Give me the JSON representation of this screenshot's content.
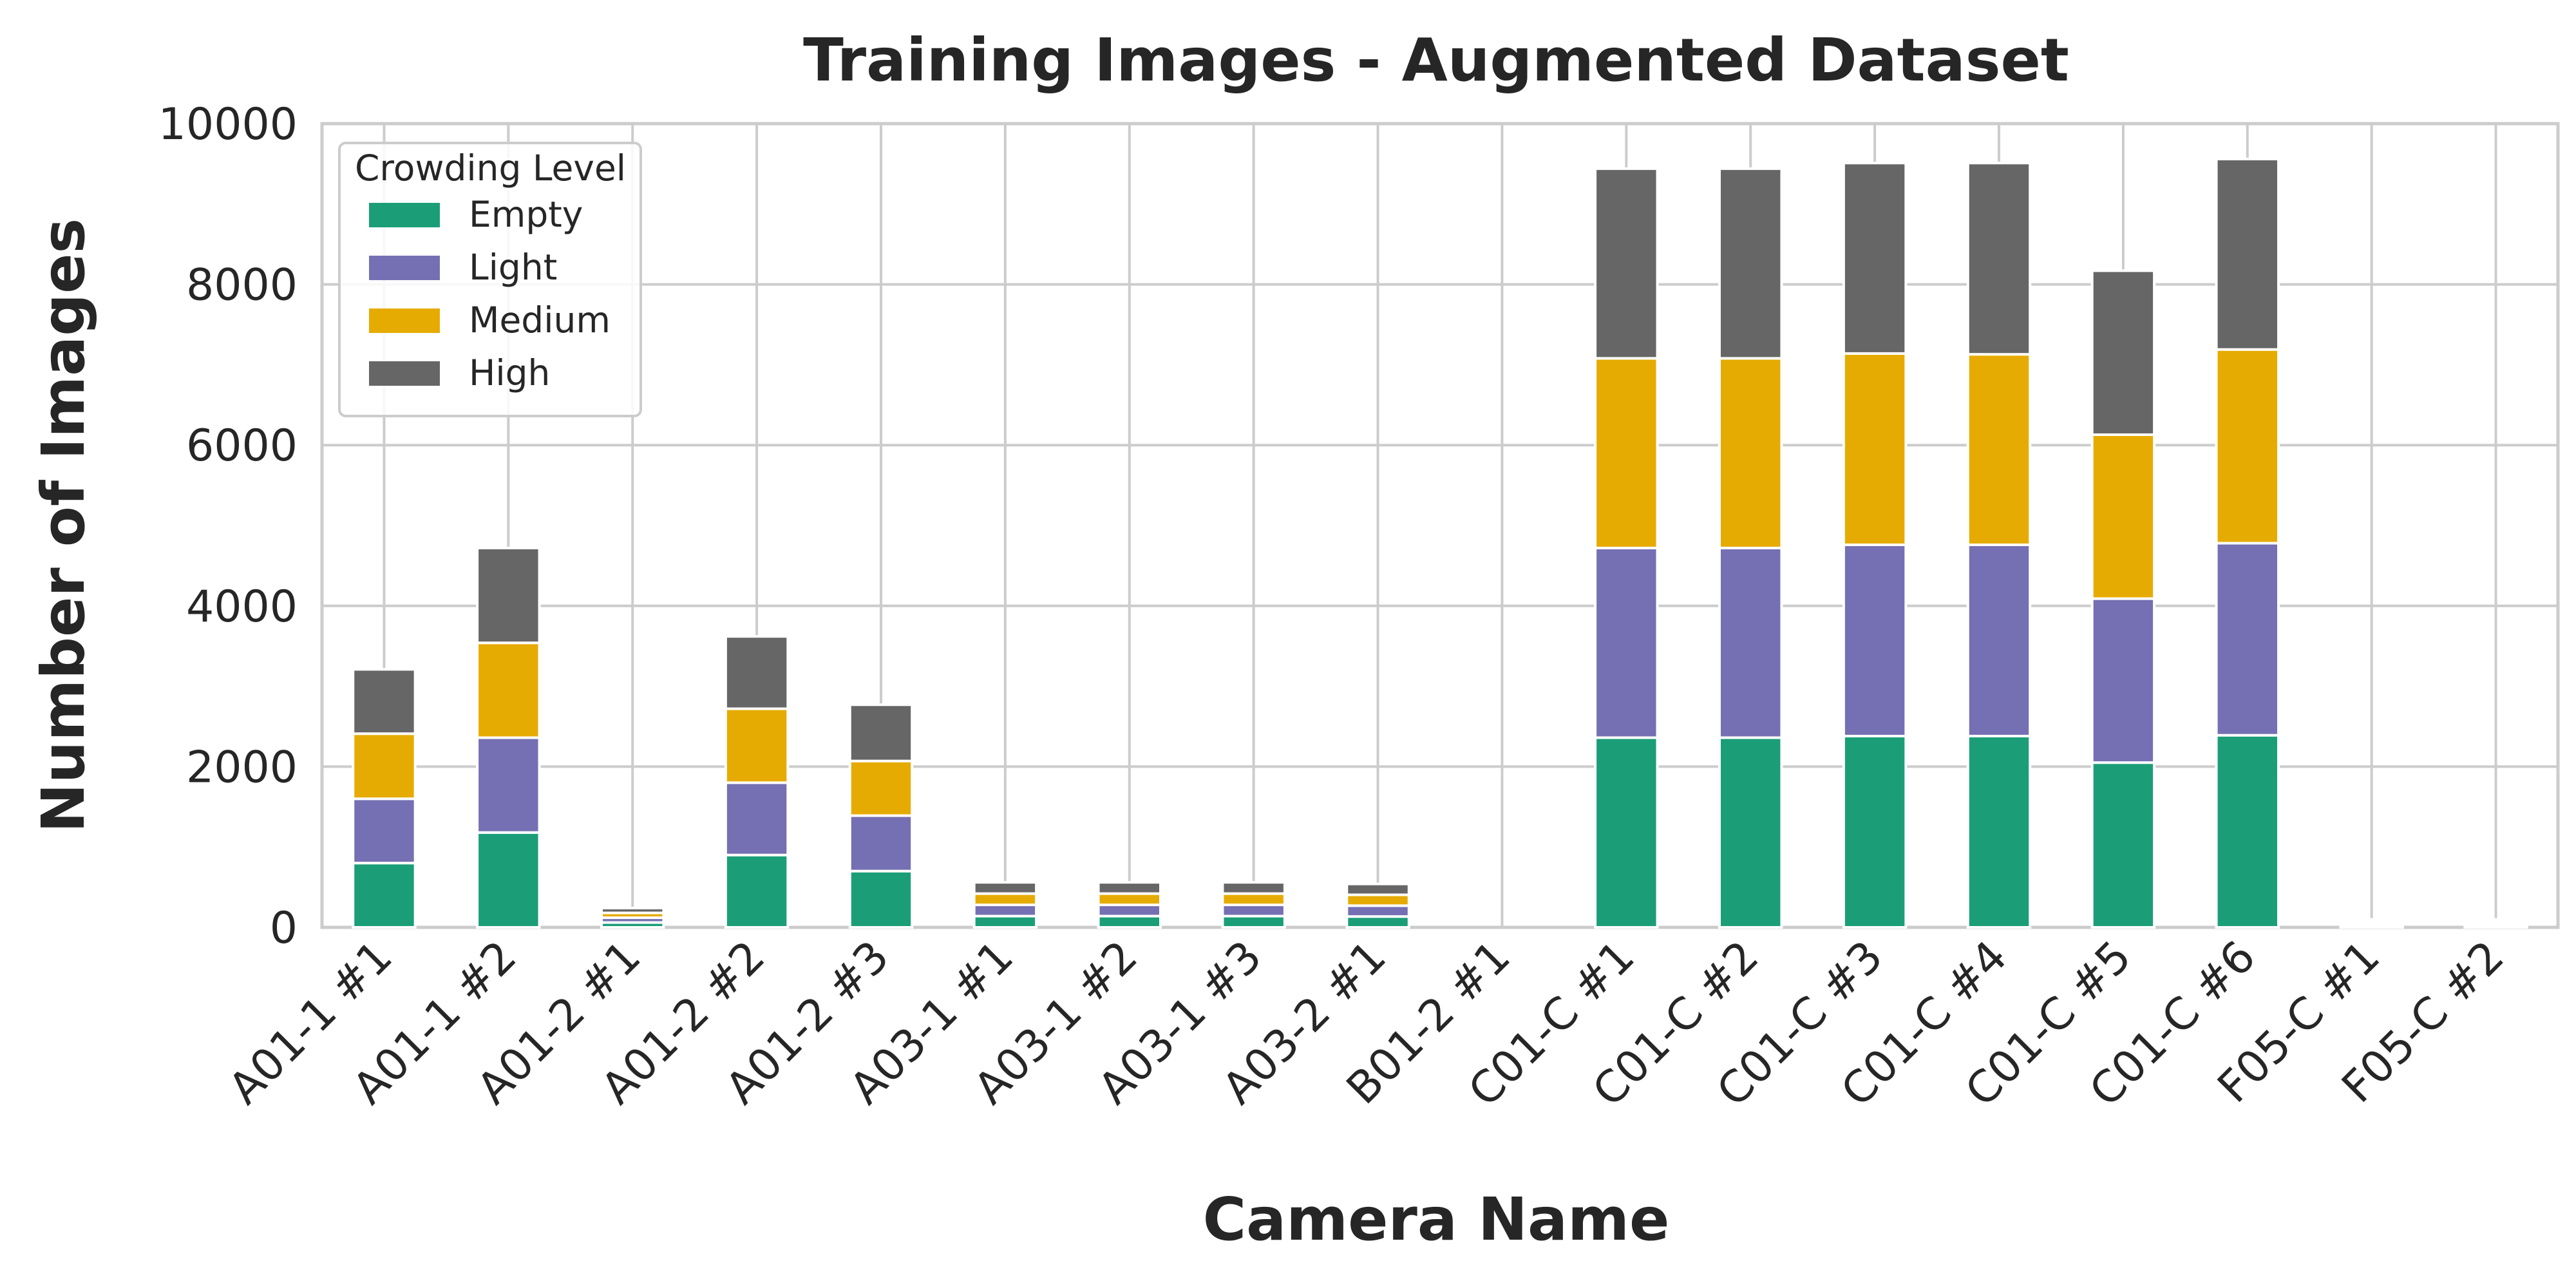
{
  "chart_data": {
    "type": "bar",
    "stacked": true,
    "title": "Training Images - Augmented Dataset",
    "xlabel": "Camera Name",
    "ylabel": "Number of Images",
    "ylim": [
      0,
      10000
    ],
    "yticks": [
      0,
      2000,
      4000,
      6000,
      8000,
      10000
    ],
    "grid": true,
    "legend": {
      "title": "Crowding Level",
      "placement": "top-left"
    },
    "categories": [
      "A01-1 #1",
      "A01-1 #2",
      "A01-2 #1",
      "A01-2 #2",
      "A01-2 #3",
      "A03-1 #1",
      "A03-1 #2",
      "A03-1 #3",
      "A03-2 #1",
      "B01-2 #1",
      "C01-C #1",
      "C01-C #2",
      "C01-C #3",
      "C01-C #4",
      "C01-C #5",
      "C01-C #6",
      "F05-C #1",
      "F05-C #2"
    ],
    "series": [
      {
        "name": "Empty",
        "color": "#1b9e77",
        "values": [
          800,
          1180,
          60,
          900,
          700,
          140,
          140,
          140,
          135,
          0,
          2360,
          2360,
          2380,
          2380,
          2050,
          2390,
          25,
          25
        ]
      },
      {
        "name": "Light",
        "color": "#7570b3",
        "values": [
          800,
          1180,
          60,
          900,
          690,
          140,
          140,
          140,
          135,
          0,
          2360,
          2360,
          2380,
          2380,
          2040,
          2390,
          25,
          25
        ]
      },
      {
        "name": "Medium",
        "color": "#e6ab02",
        "values": [
          810,
          1180,
          60,
          920,
          680,
          140,
          140,
          140,
          135,
          0,
          2360,
          2360,
          2380,
          2370,
          2040,
          2410,
          25,
          25
        ]
      },
      {
        "name": "High",
        "color": "#666666",
        "values": [
          800,
          1180,
          60,
          900,
          700,
          140,
          140,
          140,
          135,
          0,
          2360,
          2360,
          2370,
          2380,
          2040,
          2370,
          25,
          25
        ]
      }
    ]
  }
}
